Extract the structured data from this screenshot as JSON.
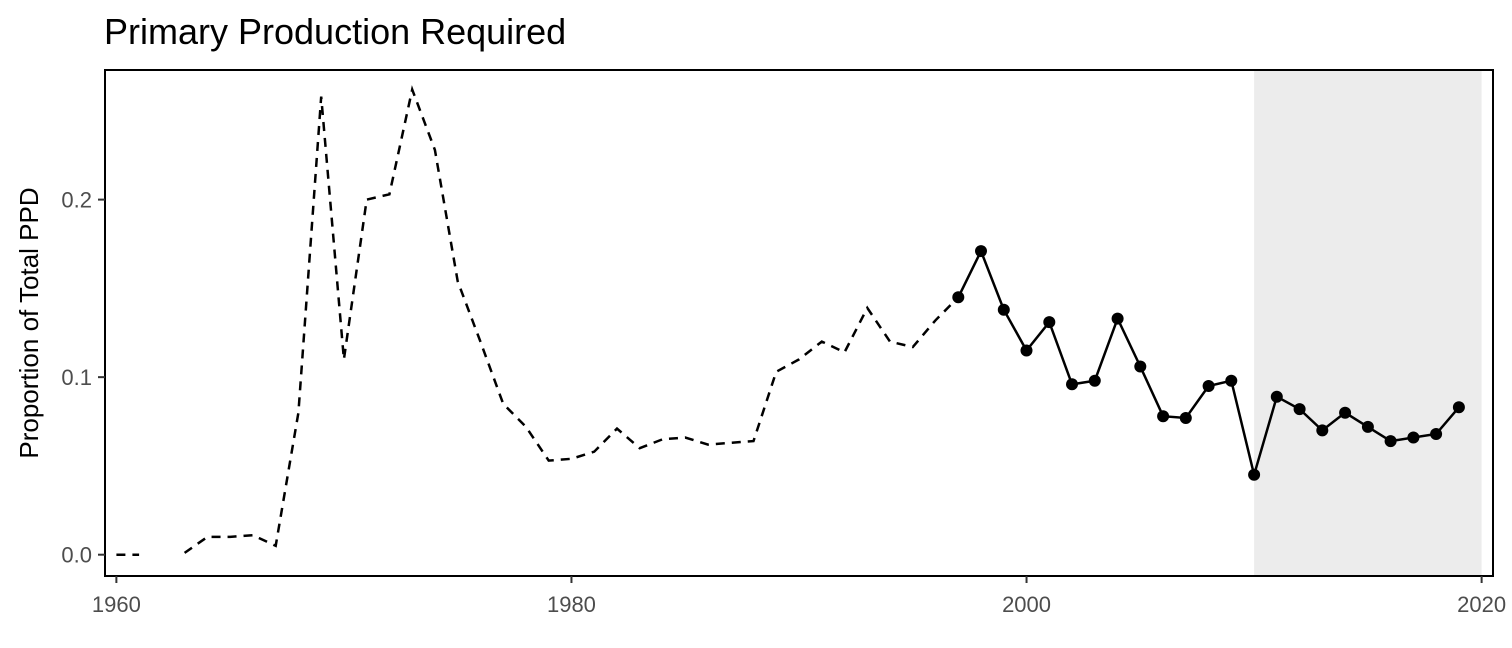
{
  "chart_data": {
    "type": "line",
    "title": "Primary Production Required",
    "xlabel": "",
    "ylabel": "Proportion of Total PPD",
    "xlim": [
      1959.5,
      2020.5
    ],
    "ylim": [
      -0.012,
      0.273
    ],
    "x_ticks": [
      1960,
      1980,
      2000,
      2020
    ],
    "x_tick_labels": [
      "1960",
      "1980",
      "2000",
      "2020"
    ],
    "y_ticks": [
      0.0,
      0.1,
      0.2
    ],
    "y_tick_labels": [
      "0.0",
      "0.1",
      "0.2"
    ],
    "grid": false,
    "shaded_region": {
      "x_start": 2010,
      "x_end": 2020,
      "color": "#ececec"
    },
    "series": [
      {
        "style": "dashed",
        "segments": [
          {
            "x": [
              1960,
              1961
            ],
            "y": [
              0.0,
              0.0
            ]
          },
          {
            "x": [
              1963,
              1964,
              1965,
              1966,
              1967,
              1968,
              1969,
              1970,
              1971,
              1972,
              1973,
              1974,
              1975,
              1976,
              1977,
              1978,
              1979,
              1980,
              1981,
              1982,
              1983,
              1984,
              1985,
              1986,
              1987,
              1988,
              1989,
              1990,
              1991,
              1992,
              1993,
              1994,
              1995,
              1996,
              1997
            ],
            "y": [
              0.001,
              0.01,
              0.01,
              0.011,
              0.005,
              0.08,
              0.258,
              0.11,
              0.2,
              0.203,
              0.262,
              0.228,
              0.154,
              0.12,
              0.085,
              0.072,
              0.053,
              0.054,
              0.058,
              0.071,
              0.06,
              0.065,
              0.066,
              0.062,
              0.063,
              0.064,
              0.103,
              0.11,
              0.12,
              0.114,
              0.139,
              0.12,
              0.117,
              0.132,
              0.145
            ]
          }
        ]
      },
      {
        "style": "solid",
        "markers": true,
        "x": [
          1997,
          1998,
          1999,
          2000,
          2001,
          2002,
          2003,
          2004,
          2005,
          2006,
          2007,
          2008,
          2009,
          2010,
          2011,
          2012,
          2013,
          2014,
          2015,
          2016,
          2017,
          2018,
          2019
        ],
        "y": [
          0.145,
          0.171,
          0.138,
          0.115,
          0.131,
          0.096,
          0.098,
          0.133,
          0.106,
          0.078,
          0.077,
          0.095,
          0.098,
          0.045,
          0.089,
          0.082,
          0.07,
          0.08,
          0.072,
          0.064,
          0.066,
          0.068,
          0.083
        ]
      }
    ]
  }
}
